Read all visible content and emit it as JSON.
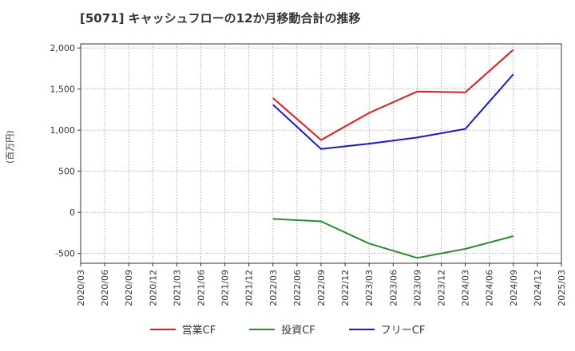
{
  "chart_data": {
    "type": "line",
    "title": "[5071]  キャッシュフローの12か月移動合計の推移",
    "ylabel": "(百万円)",
    "xlabel": "",
    "ylim": [
      -620,
      2050
    ],
    "yticks": [
      -500,
      0,
      500,
      1000,
      1500,
      2000
    ],
    "ytick_labels": [
      "-500",
      "0",
      "500",
      "1,000",
      "1,500",
      "2,000"
    ],
    "categories": [
      "2020/03",
      "2020/06",
      "2020/09",
      "2020/12",
      "2021/03",
      "2021/06",
      "2021/09",
      "2021/12",
      "2022/03",
      "2022/06",
      "2022/09",
      "2022/12",
      "2023/03",
      "2023/06",
      "2023/09",
      "2023/12",
      "2024/03",
      "2024/06",
      "2024/09",
      "2024/12",
      "2025/03"
    ],
    "grid": true,
    "legend_position": "bottom",
    "series": [
      {
        "name": "営業CF",
        "color": "#e8191a",
        "points": [
          [
            "2022/03",
            1390
          ],
          [
            "2022/09",
            880
          ],
          [
            "2023/03",
            1210
          ],
          [
            "2023/09",
            1470
          ],
          [
            "2024/03",
            1460
          ],
          [
            "2024/09",
            1980
          ]
        ]
      },
      {
        "name": "投資CF",
        "color": "#2e8a2e",
        "points": [
          [
            "2022/03",
            -80
          ],
          [
            "2022/09",
            -110
          ],
          [
            "2023/03",
            -380
          ],
          [
            "2023/09",
            -555
          ],
          [
            "2024/03",
            -445
          ],
          [
            "2024/09",
            -290
          ]
        ]
      },
      {
        "name": "フリーCF",
        "color": "#1818d8",
        "points": [
          [
            "2022/03",
            1310
          ],
          [
            "2022/09",
            770
          ],
          [
            "2023/03",
            835
          ],
          [
            "2023/09",
            910
          ],
          [
            "2024/03",
            1015
          ],
          [
            "2024/09",
            1680
          ]
        ]
      }
    ]
  }
}
